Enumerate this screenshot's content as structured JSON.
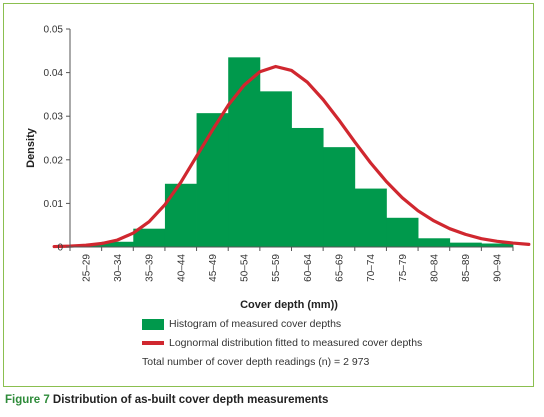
{
  "chart_data": {
    "type": "bar",
    "categories": [
      "25–29",
      "30–34",
      "35–39",
      "40–44",
      "45–49",
      "50–54",
      "55–59",
      "60–64",
      "65–69",
      "70–74",
      "75–79",
      "80–84",
      "85–89",
      "90–94"
    ],
    "values": [
      0.0005,
      0.0012,
      0.0042,
      0.0145,
      0.0307,
      0.0435,
      0.0357,
      0.0273,
      0.0229,
      0.0134,
      0.0067,
      0.002,
      0.001,
      0.0008
    ],
    "ylim": [
      0,
      0.05
    ],
    "yticks": [
      0,
      0.01,
      0.02,
      0.03,
      0.04,
      0.05
    ],
    "ytick_labels": [
      "0",
      "0.01",
      "0.02",
      "0.03",
      "0.04",
      "0.05"
    ],
    "xlabel": "Cover depth (mm))",
    "ylabel": "Density",
    "curve": {
      "name": "Lognormal distribution fitted to measured cover depths",
      "points": [
        [
          -0.5,
          0.0001
        ],
        [
          0,
          0.0002
        ],
        [
          0.5,
          0.0004
        ],
        [
          1,
          0.0008
        ],
        [
          1.5,
          0.0016
        ],
        [
          2,
          0.0032
        ],
        [
          2.5,
          0.0058
        ],
        [
          3,
          0.0097
        ],
        [
          3.5,
          0.0148
        ],
        [
          4,
          0.0208
        ],
        [
          4.5,
          0.0268
        ],
        [
          5,
          0.0325
        ],
        [
          5.5,
          0.0371
        ],
        [
          6,
          0.0402
        ],
        [
          6.5,
          0.0414
        ],
        [
          7,
          0.0405
        ],
        [
          7.5,
          0.0378
        ],
        [
          8,
          0.0338
        ],
        [
          8.5,
          0.0291
        ],
        [
          9,
          0.0241
        ],
        [
          9.5,
          0.0193
        ],
        [
          10,
          0.015
        ],
        [
          10.5,
          0.0113
        ],
        [
          11,
          0.0083
        ],
        [
          11.5,
          0.006
        ],
        [
          12,
          0.0042
        ],
        [
          12.5,
          0.0029
        ],
        [
          13,
          0.0019
        ],
        [
          13.5,
          0.0013
        ],
        [
          14,
          0.0009
        ],
        [
          14.5,
          0.0006
        ]
      ]
    },
    "colors": {
      "bar": "#00994c",
      "curve": "#d0272f",
      "axis": "#555555",
      "frame": "#8bbf4f"
    },
    "grid": false
  },
  "legend": {
    "histogram": "Histogram of measured cover depths",
    "curve": "Lognormal distribution fitted to measured cover depths",
    "total": "Total number of cover depth readings (n) = 2 973"
  },
  "caption": {
    "label": "Figure 7",
    "text": " Distribution of as-built cover depth measurements"
  }
}
